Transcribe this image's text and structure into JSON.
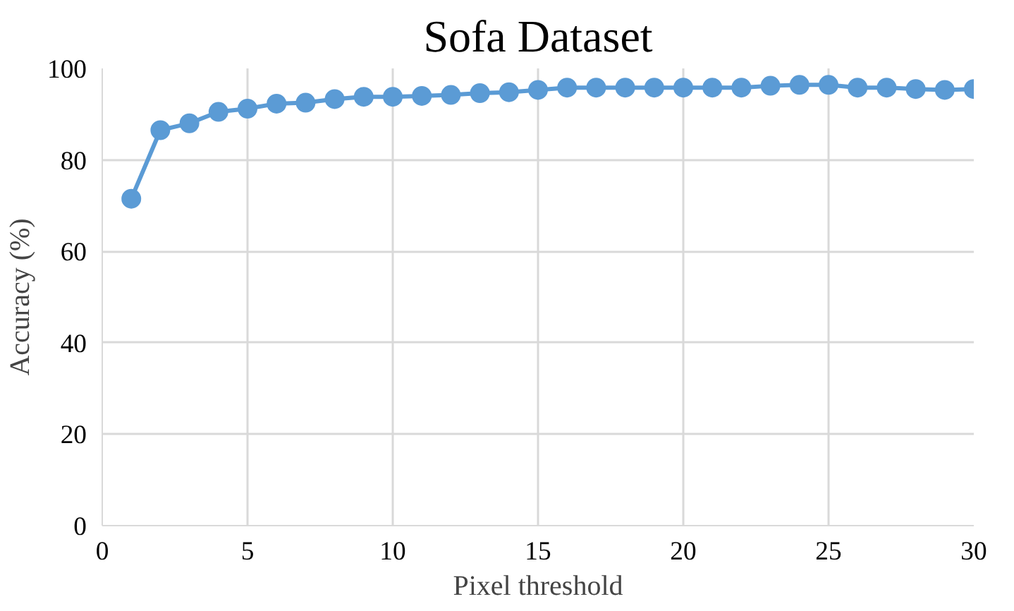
{
  "chart_data": {
    "type": "line",
    "title": "Sofa Dataset",
    "xlabel": "Pixel threshold",
    "ylabel": "Accuracy (%)",
    "x": [
      1,
      2,
      3,
      4,
      5,
      6,
      7,
      8,
      9,
      10,
      11,
      12,
      13,
      14,
      15,
      16,
      17,
      18,
      19,
      20,
      21,
      22,
      23,
      24,
      25,
      26,
      27,
      28,
      29,
      30
    ],
    "series": [
      {
        "color": "#5b9bd5",
        "values": [
          71.5,
          86.5,
          88,
          90.5,
          91.2,
          92.3,
          92.5,
          93.3,
          93.8,
          93.8,
          94.0,
          94.2,
          94.6,
          94.8,
          95.3,
          95.8,
          95.8,
          95.8,
          95.8,
          95.8,
          95.8,
          95.8,
          96.2,
          96.4,
          96.4,
          95.8,
          95.8,
          95.5,
          95.3,
          95.5
        ]
      }
    ],
    "xlim": [
      0,
      30
    ],
    "xticks": [
      0,
      5,
      10,
      15,
      20,
      25,
      30
    ],
    "ylim": [
      0,
      100
    ],
    "yticks": [
      0,
      20,
      40,
      60,
      80,
      100
    ],
    "grid": true,
    "marker": "circle",
    "line_style": "solid"
  }
}
